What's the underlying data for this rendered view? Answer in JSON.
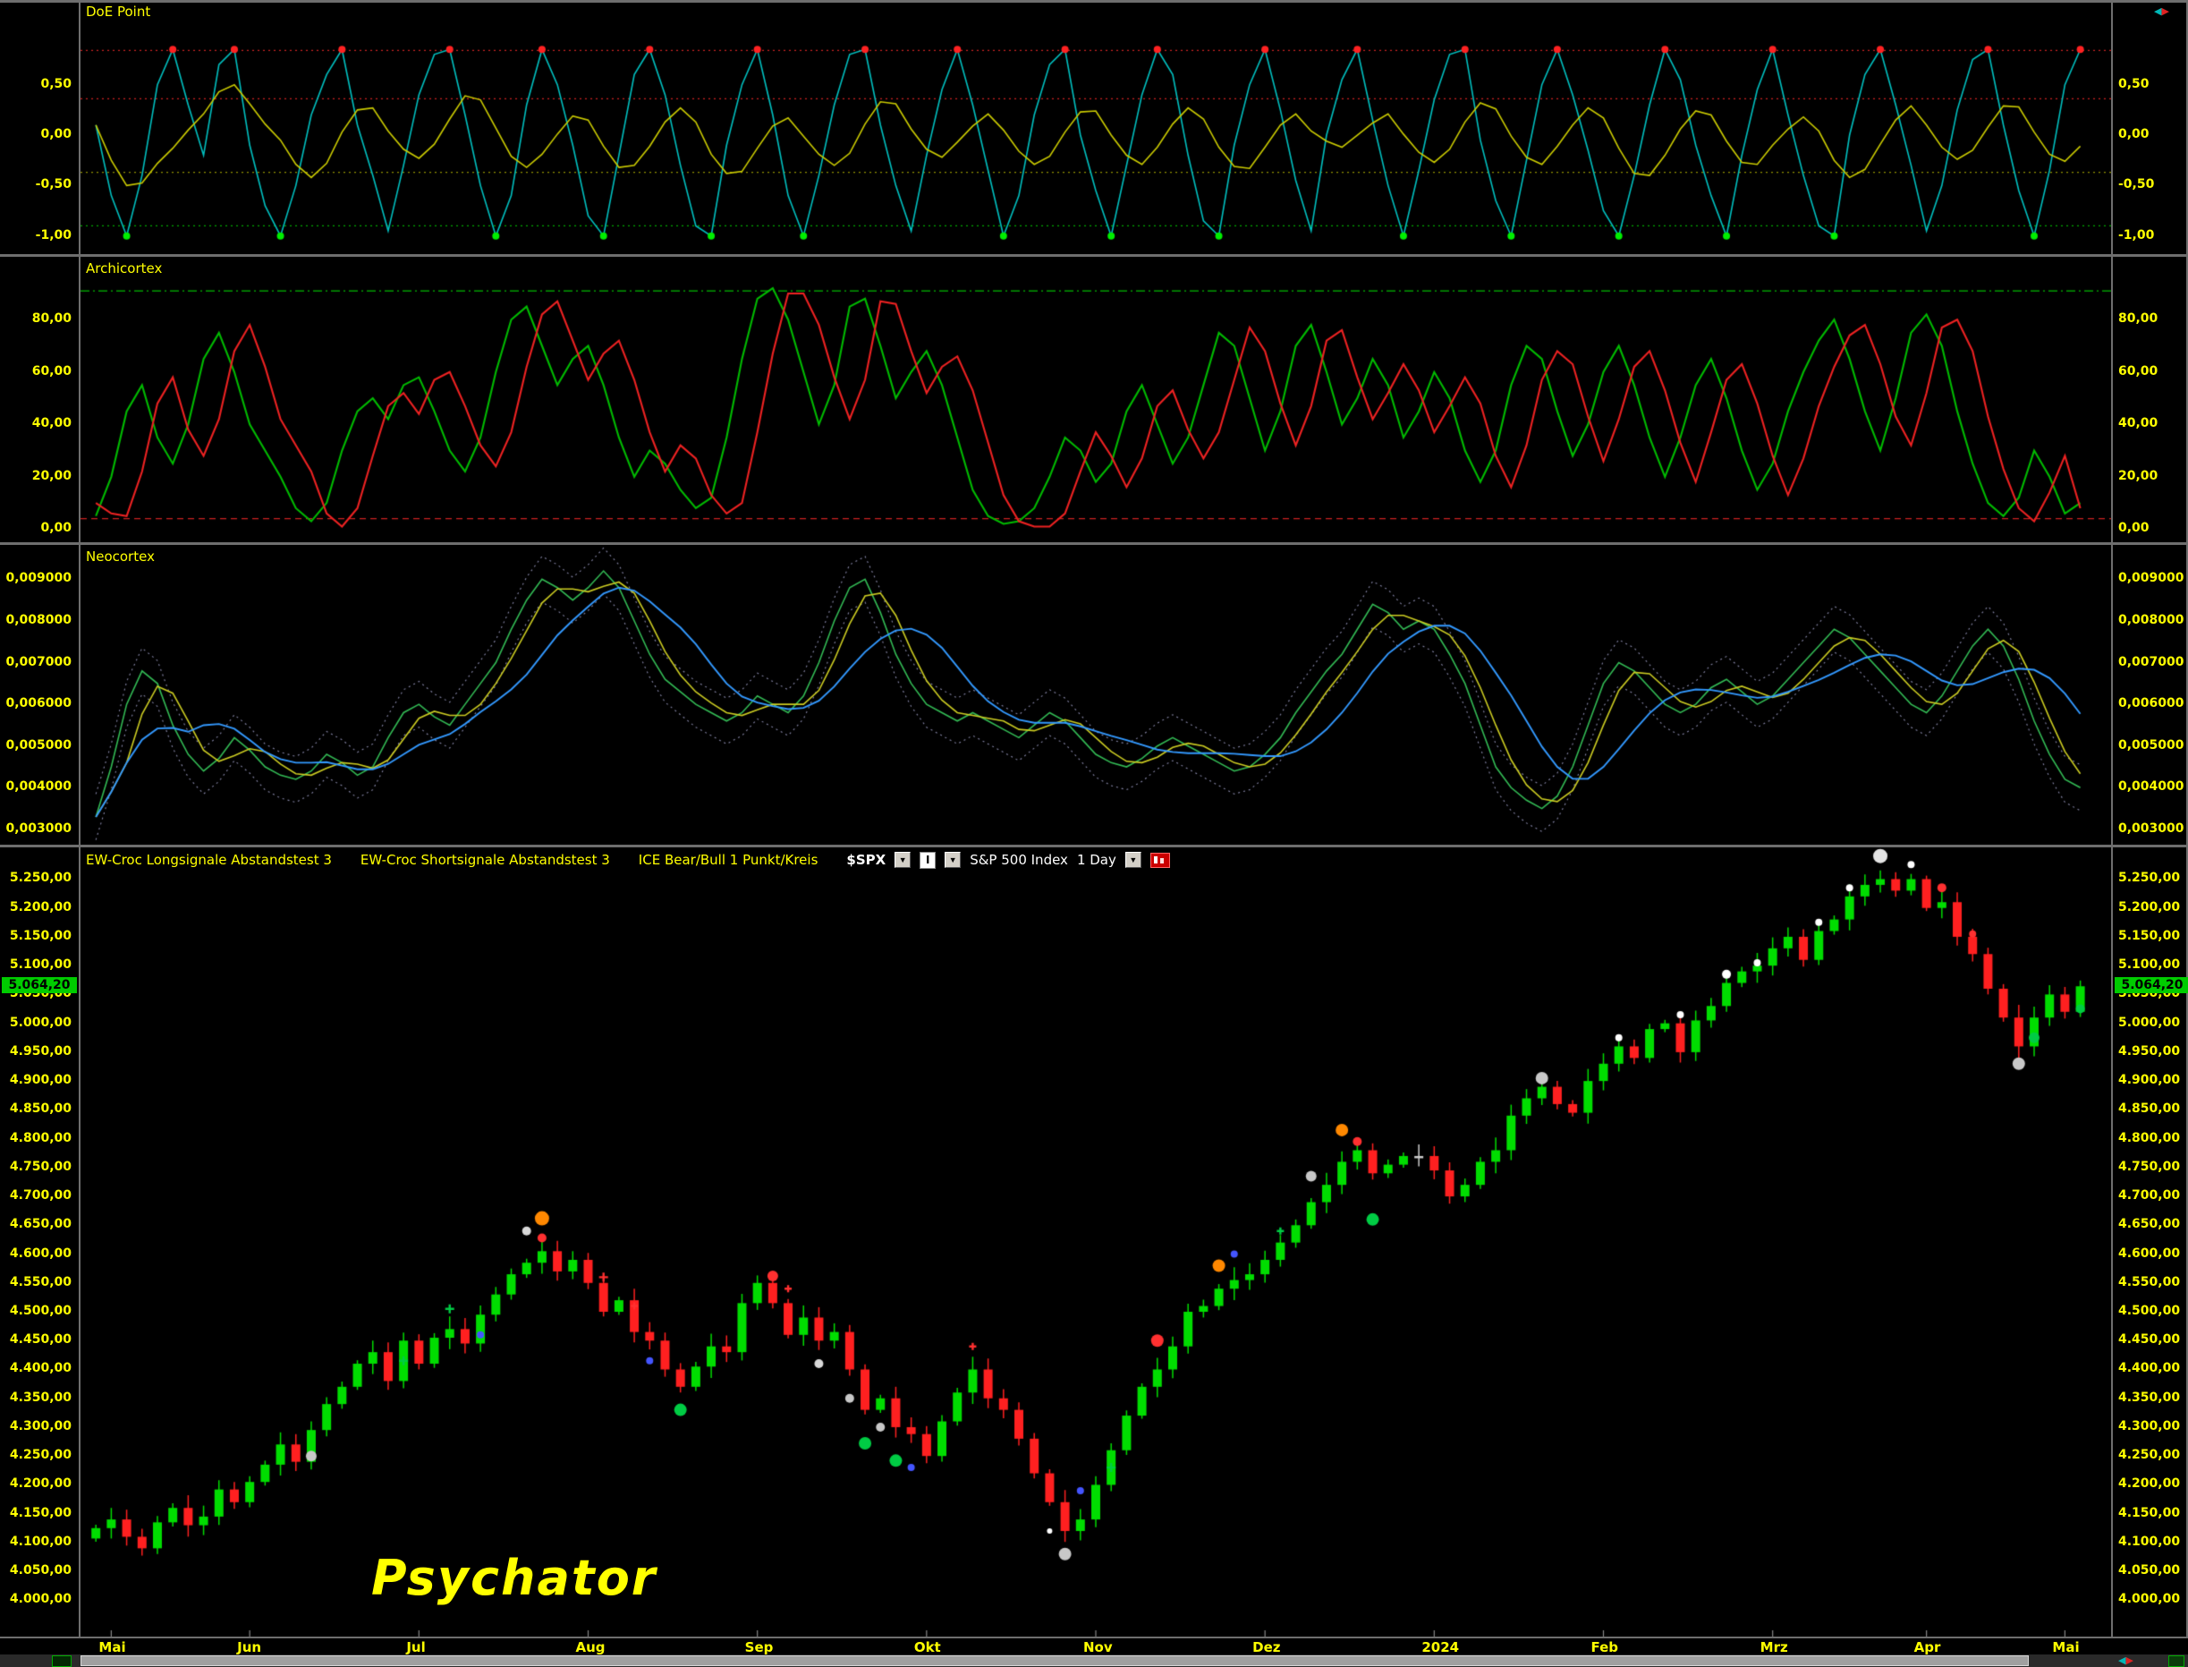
{
  "watermark": "Psychator",
  "icons": {
    "dropdown": "▼",
    "pan_left": "◀",
    "pan_right": "▶"
  },
  "toolbar": {
    "indicator1": "EW-Croc Longsignale Abstandstest 3",
    "indicator2": "EW-Croc Shortsignale Abstandstest 3",
    "indicator3": "ICE Bear/Bull 1 Punkt/Kreis",
    "symbol": "$SPX",
    "interval_button": "I",
    "instrument": "S&P 500 Index",
    "period": "1 Day"
  },
  "chart_data": [
    {
      "type": "line",
      "title": "DoE Point",
      "decimals": 2,
      "ylim": [
        -1.18,
        1.34
      ],
      "ticks": [
        0.5,
        0,
        -0.5,
        -1
      ],
      "hlines": [
        {
          "v": 0.84,
          "color": "#cc2222",
          "dash": [
            2,
            4
          ]
        },
        {
          "v": 0.36,
          "color": "#cc2222",
          "dash": [
            2,
            4
          ]
        },
        {
          "v": -0.37,
          "color": "#8f8f00",
          "dash": [
            2,
            4
          ]
        },
        {
          "v": -0.9,
          "color": "#00aa00",
          "dash": [
            2,
            4
          ]
        }
      ],
      "signals": {
        "top_level": 0.84,
        "bottom_level": -0.97
      },
      "colors": {
        "fast": "#00c0c0",
        "slow": "#cccc00",
        "top_dot": "#ff2222",
        "bottom_dot": "#00ee00"
      },
      "series": {
        "fast": [
          0.1,
          -0.6,
          -1.0,
          -0.4,
          0.5,
          0.85,
          0.3,
          -0.2,
          0.7,
          0.85,
          -0.1,
          -0.7,
          -1.0,
          -0.5,
          0.2,
          0.6,
          0.85,
          0.1,
          -0.4,
          -0.95,
          -0.3,
          0.4,
          0.8,
          0.85,
          0.2,
          -0.5,
          -1.0,
          -0.6,
          0.3,
          0.85,
          0.5,
          -0.1,
          -0.8,
          -1.0,
          -0.2,
          0.6,
          0.85,
          0.4,
          -0.3,
          -0.9,
          -1.0,
          -0.1,
          0.5,
          0.85,
          0.2,
          -0.6,
          -1.0,
          -0.4,
          0.3,
          0.8,
          0.85,
          0.1,
          -0.5,
          -0.95,
          -0.2,
          0.45,
          0.85,
          0.3,
          -0.35,
          -1.0,
          -0.6,
          0.2,
          0.7,
          0.85,
          0.0,
          -0.55,
          -1.0,
          -0.3,
          0.4,
          0.85,
          0.6,
          -0.2,
          -0.85,
          -1.0,
          -0.1,
          0.5,
          0.85,
          0.25,
          -0.45,
          -0.95,
          0.0,
          0.55,
          0.85,
          0.15,
          -0.5,
          -1.0,
          -0.35,
          0.35,
          0.8,
          0.85,
          -0.05,
          -0.65,
          -1.0,
          -0.25,
          0.5,
          0.85,
          0.4,
          -0.15,
          -0.75,
          -1.0,
          -0.4,
          0.3,
          0.85,
          0.55,
          -0.1,
          -0.6,
          -1.0,
          -0.2,
          0.45,
          0.85,
          0.2,
          -0.4,
          -0.9,
          -1.0,
          0.0,
          0.6,
          0.85,
          0.3,
          -0.3,
          -0.95,
          -0.5,
          0.25,
          0.75,
          0.85,
          0.1,
          -0.55,
          -1.0,
          -0.35,
          0.5,
          0.85
        ]
      }
    },
    {
      "type": "line",
      "title": "Archicortex",
      "decimals": 2,
      "ylim": [
        -5,
        104
      ],
      "ticks": [
        80,
        60,
        40,
        20,
        0
      ],
      "hlines": [
        {
          "v": 91,
          "color": "#00bb00",
          "dash": [
            10,
            4,
            2,
            4
          ]
        },
        {
          "v": 4,
          "color": "#cc2222",
          "dash": [
            7,
            5
          ]
        }
      ],
      "colors": {
        "green": "#00bb00",
        "red": "#ee2222"
      },
      "series": {
        "green": [
          5,
          20,
          45,
          55,
          35,
          25,
          40,
          65,
          75,
          60,
          40,
          30,
          20,
          8,
          3,
          10,
          30,
          45,
          50,
          42,
          55,
          58,
          45,
          30,
          22,
          35,
          60,
          80,
          85,
          70,
          55,
          65,
          70,
          55,
          35,
          20,
          30,
          25,
          15,
          8,
          12,
          35,
          65,
          88,
          92,
          80,
          60,
          40,
          55,
          85,
          88,
          70,
          50,
          60,
          68,
          55,
          35,
          15,
          5,
          2,
          3,
          8,
          20,
          35,
          30,
          18,
          25,
          45,
          55,
          40,
          25,
          35,
          55,
          75,
          70,
          50,
          30,
          45,
          70,
          78,
          60,
          40,
          50,
          65,
          55,
          35,
          45,
          60,
          50,
          30,
          18,
          30,
          55,
          70,
          65,
          45,
          28,
          40,
          60,
          70,
          55,
          35,
          20,
          35,
          55,
          65,
          50,
          30,
          15,
          25,
          45,
          60,
          72,
          80,
          65,
          45,
          30,
          50,
          75,
          82,
          70,
          45,
          25,
          10,
          5,
          12,
          30,
          20,
          6,
          10
        ],
        "red": [
          10,
          6,
          5,
          22,
          48,
          58,
          38,
          28,
          42,
          68,
          78,
          62,
          42,
          32,
          22,
          6,
          1,
          8,
          28,
          47,
          52,
          44,
          57,
          60,
          47,
          32,
          24,
          37,
          62,
          82,
          87,
          72,
          57,
          67,
          72,
          57,
          37,
          22,
          32,
          27,
          13,
          6,
          10,
          37,
          67,
          90,
          90,
          78,
          58,
          42,
          57,
          87,
          86,
          68,
          52,
          62,
          66,
          53,
          33,
          13,
          3,
          1,
          1,
          6,
          22,
          37,
          28,
          16,
          27,
          47,
          53,
          38,
          27,
          37,
          57,
          77,
          68,
          48,
          32,
          47,
          72,
          76,
          58,
          42,
          52,
          63,
          53,
          37,
          47,
          58,
          48,
          28,
          16,
          32,
          57,
          68,
          63,
          43,
          26,
          42,
          62,
          68,
          53,
          33,
          18,
          37,
          57,
          63,
          48,
          28,
          13,
          27,
          47,
          62,
          74,
          78,
          63,
          43,
          32,
          52,
          77,
          80,
          68,
          43,
          23,
          8,
          3,
          14,
          28,
          8
        ]
      }
    },
    {
      "type": "line",
      "title": "Neocortex",
      "decimals": 6,
      "ylim": [
        0.002633,
        0.009824
      ],
      "ticks": [
        0.009,
        0.008,
        0.007,
        0.006,
        0.005,
        0.004,
        0.003
      ],
      "hlines": [],
      "envelope": 0.00055,
      "colors": {
        "main": "#33bb55",
        "smooth3": "#cccc22",
        "smooth7": "#3399ff",
        "band": "#8888aa"
      },
      "series": {
        "main": [
          0.0033,
          0.0045,
          0.006,
          0.0068,
          0.0065,
          0.0055,
          0.0048,
          0.0044,
          0.0047,
          0.0052,
          0.0049,
          0.0045,
          0.0043,
          0.0042,
          0.0044,
          0.0048,
          0.0046,
          0.0043,
          0.0045,
          0.0052,
          0.0058,
          0.006,
          0.0057,
          0.0055,
          0.006,
          0.0065,
          0.007,
          0.0078,
          0.0085,
          0.009,
          0.0088,
          0.0085,
          0.0088,
          0.0092,
          0.0088,
          0.008,
          0.0072,
          0.0066,
          0.0063,
          0.006,
          0.0058,
          0.0056,
          0.0058,
          0.0062,
          0.006,
          0.0058,
          0.0062,
          0.007,
          0.008,
          0.0088,
          0.009,
          0.0082,
          0.0072,
          0.0065,
          0.006,
          0.0058,
          0.0056,
          0.0058,
          0.0056,
          0.0054,
          0.0052,
          0.0055,
          0.0058,
          0.0056,
          0.0052,
          0.0048,
          0.0046,
          0.0045,
          0.0047,
          0.005,
          0.0052,
          0.005,
          0.0048,
          0.0046,
          0.0044,
          0.0045,
          0.0048,
          0.0052,
          0.0058,
          0.0063,
          0.0068,
          0.0072,
          0.0078,
          0.0084,
          0.0082,
          0.0078,
          0.008,
          0.0078,
          0.0072,
          0.0065,
          0.0055,
          0.0045,
          0.004,
          0.0037,
          0.0035,
          0.0038,
          0.0045,
          0.0055,
          0.0065,
          0.007,
          0.0068,
          0.0064,
          0.006,
          0.0058,
          0.006,
          0.0064,
          0.0066,
          0.0063,
          0.006,
          0.0062,
          0.0066,
          0.007,
          0.0074,
          0.0078,
          0.0076,
          0.0072,
          0.0068,
          0.0064,
          0.006,
          0.0058,
          0.0062,
          0.0068,
          0.0074,
          0.0078,
          0.0074,
          0.0066,
          0.0056,
          0.0048,
          0.0042,
          0.004
        ]
      }
    },
    {
      "type": "candlestick",
      "title": "S&P 500 Index",
      "symbol": "$SPX",
      "period": "1 Day",
      "decimals": 2,
      "ylim": [
        3937,
        5305
      ],
      "ticks": [
        5250,
        5200,
        5150,
        5100,
        5050,
        5000,
        4950,
        4900,
        4850,
        4800,
        4750,
        4700,
        4650,
        4600,
        4550,
        4500,
        4450,
        4400,
        4350,
        4300,
        4250,
        4200,
        4150,
        4100,
        4050,
        4000
      ],
      "hlines": [],
      "last_price": {
        "value": 5064.2,
        "label": "5.064,20"
      },
      "colors": {
        "up": "#00dd00",
        "down": "#ff2020",
        "neutral": "#cccccc"
      },
      "series": {
        "close": [
          4125,
          4140,
          4110,
          4090,
          4135,
          4160,
          4130,
          4145,
          4192,
          4170,
          4205,
          4235,
          4270,
          4240,
          4295,
          4340,
          4370,
          4410,
          4430,
          4380,
          4450,
          4410,
          4455,
          4470,
          4445,
          4495,
          4530,
          4565,
          4585,
          4605,
          4570,
          4590,
          4550,
          4500,
          4520,
          4465,
          4450,
          4400,
          4370,
          4405,
          4440,
          4430,
          4515,
          4550,
          4515,
          4460,
          4490,
          4450,
          4465,
          4400,
          4330,
          4350,
          4300,
          4288,
          4250,
          4310,
          4360,
          4400,
          4350,
          4330,
          4280,
          4220,
          4170,
          4120,
          4140,
          4200,
          4260,
          4320,
          4370,
          4400,
          4440,
          4500,
          4510,
          4540,
          4555,
          4565,
          4590,
          4620,
          4650,
          4690,
          4720,
          4760,
          4780,
          4740,
          4755,
          4770,
          4770,
          4745,
          4700,
          4720,
          4760,
          4780,
          4840,
          4870,
          4890,
          4860,
          4845,
          4900,
          4930,
          4960,
          4940,
          4990,
          5000,
          4950,
          5005,
          5030,
          5070,
          5090,
          5100,
          5130,
          5150,
          5110,
          5160,
          5180,
          5220,
          5240,
          5250,
          5230,
          5250,
          5200,
          5210,
          5150,
          5120,
          5060,
          5010,
          4960,
          5010,
          5050,
          5020,
          5064.2
        ]
      },
      "markers": [
        {
          "i": 14,
          "p": 4250,
          "c": "#c8c8c8",
          "r": 6
        },
        {
          "i": 20,
          "p": 4415,
          "c": "#00cc44",
          "r": 5,
          "t": "plus"
        },
        {
          "i": 23,
          "p": 4505,
          "c": "#00cc44",
          "r": 5,
          "t": "plus"
        },
        {
          "i": 25,
          "p": 4460,
          "c": "#4455ff",
          "r": 4
        },
        {
          "i": 28,
          "p": 4640,
          "c": "#d8d8d8",
          "r": 5
        },
        {
          "i": 29,
          "p": 4662,
          "c": "#ff8800",
          "r": 8
        },
        {
          "i": 29,
          "p": 4628,
          "c": "#ff3030",
          "r": 5
        },
        {
          "i": 33,
          "p": 4560,
          "c": "#ff3030",
          "r": 5,
          "t": "plus"
        },
        {
          "i": 35,
          "p": 4510,
          "c": "#ff3030",
          "r": 4,
          "t": "plus"
        },
        {
          "i": 36,
          "p": 4415,
          "c": "#4455ff",
          "r": 4
        },
        {
          "i": 38,
          "p": 4330,
          "c": "#00cc44",
          "r": 7
        },
        {
          "i": 44,
          "p": 4562,
          "c": "#ff3030",
          "r": 6
        },
        {
          "i": 45,
          "p": 4540,
          "c": "#ff3030",
          "r": 4,
          "t": "plus"
        },
        {
          "i": 47,
          "p": 4410,
          "c": "#d8d8d8",
          "r": 5
        },
        {
          "i": 49,
          "p": 4350,
          "c": "#c8c8c8",
          "r": 5
        },
        {
          "i": 50,
          "p": 4272,
          "c": "#00cc44",
          "r": 7
        },
        {
          "i": 51,
          "p": 4300,
          "c": "#c8c8c8",
          "r": 5
        },
        {
          "i": 52,
          "p": 4242,
          "c": "#00cc44",
          "r": 7
        },
        {
          "i": 53,
          "p": 4230,
          "c": "#4455ff",
          "r": 4
        },
        {
          "i": 57,
          "p": 4440,
          "c": "#ff3030",
          "r": 4,
          "t": "plus"
        },
        {
          "i": 62,
          "p": 4120,
          "c": "#ffffff",
          "r": 3
        },
        {
          "i": 63,
          "p": 4080,
          "c": "#c8c8c8",
          "r": 7
        },
        {
          "i": 64,
          "p": 4190,
          "c": "#4455ff",
          "r": 4
        },
        {
          "i": 66,
          "p": 4230,
          "c": "#00cc44",
          "r": 5,
          "t": "plus"
        },
        {
          "i": 69,
          "p": 4450,
          "c": "#ff3030",
          "r": 7
        },
        {
          "i": 73,
          "p": 4580,
          "c": "#ff8800",
          "r": 7
        },
        {
          "i": 74,
          "p": 4600,
          "c": "#4455ff",
          "r": 4
        },
        {
          "i": 77,
          "p": 4640,
          "c": "#00cc44",
          "r": 4,
          "t": "plus"
        },
        {
          "i": 79,
          "p": 4735,
          "c": "#c8c8c8",
          "r": 6
        },
        {
          "i": 81,
          "p": 4815,
          "c": "#ff8800",
          "r": 7
        },
        {
          "i": 82,
          "p": 4795,
          "c": "#ff3030",
          "r": 5
        },
        {
          "i": 83,
          "p": 4660,
          "c": "#00cc44",
          "r": 7
        },
        {
          "i": 94,
          "p": 4905,
          "c": "#c8c8c8",
          "r": 7
        },
        {
          "i": 99,
          "p": 4975,
          "c": "#ffffff",
          "r": 4
        },
        {
          "i": 103,
          "p": 5015,
          "c": "#ffffff",
          "r": 4
        },
        {
          "i": 106,
          "p": 5085,
          "c": "#ffffff",
          "r": 5
        },
        {
          "i": 108,
          "p": 5105,
          "c": "#ffffff",
          "r": 4
        },
        {
          "i": 112,
          "p": 5175,
          "c": "#ffffff",
          "r": 4
        },
        {
          "i": 114,
          "p": 5235,
          "c": "#ffffff",
          "r": 4
        },
        {
          "i": 116,
          "p": 5290,
          "c": "#e4e4e4",
          "r": 8
        },
        {
          "i": 118,
          "p": 5275,
          "c": "#ffffff",
          "r": 4
        },
        {
          "i": 120,
          "p": 5235,
          "c": "#ff3030",
          "r": 5
        },
        {
          "i": 122,
          "p": 5155,
          "c": "#ff3030",
          "r": 4
        },
        {
          "i": 125,
          "p": 4930,
          "c": "#c8c8c8",
          "r": 7
        },
        {
          "i": 126,
          "p": 4975,
          "c": "#00cc44",
          "r": 6
        },
        {
          "i": 129,
          "p": 5025,
          "c": "#00cc44",
          "r": 5
        }
      ],
      "months": [
        {
          "label": "Mai",
          "i": 1
        },
        {
          "label": "Jun",
          "i": 10
        },
        {
          "label": "Jul",
          "i": 21
        },
        {
          "label": "Aug",
          "i": 32
        },
        {
          "label": "Sep",
          "i": 43
        },
        {
          "label": "Okt",
          "i": 54
        },
        {
          "label": "Nov",
          "i": 65
        },
        {
          "label": "Dez",
          "i": 76
        },
        {
          "label": "2024",
          "i": 87
        },
        {
          "label": "Feb",
          "i": 98
        },
        {
          "label": "Mrz",
          "i": 109
        },
        {
          "label": "Apr",
          "i": 119
        },
        {
          "label": "Mai",
          "i": 128
        }
      ]
    }
  ]
}
